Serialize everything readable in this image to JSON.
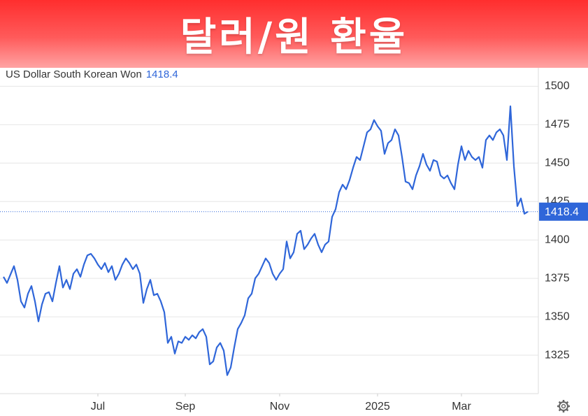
{
  "chart_data": {
    "type": "line",
    "title": "달러/원 환율",
    "series": [
      {
        "name": "US Dollar South Korean Won",
        "color": "#2f66d9",
        "values": [
          1376,
          1372,
          1377.5,
          1383,
          1374,
          1360,
          1356,
          1365,
          1370,
          1360,
          1347,
          1358,
          1365,
          1366,
          1360,
          1372,
          1383,
          1369,
          1374,
          1368,
          1378,
          1381,
          1376,
          1384,
          1390,
          1391,
          1388,
          1384,
          1381,
          1385,
          1379,
          1383,
          1374,
          1378,
          1384,
          1388,
          1385,
          1381,
          1384,
          1378,
          1359,
          1368,
          1374,
          1364,
          1365,
          1360,
          1353,
          1333,
          1337,
          1326,
          1334,
          1333,
          1337,
          1335,
          1338,
          1336,
          1340,
          1342,
          1337,
          1319,
          1321,
          1330,
          1333,
          1328,
          1312,
          1317,
          1330,
          1342,
          1346,
          1351,
          1362,
          1365,
          1375,
          1378,
          1383,
          1388,
          1385,
          1378,
          1374,
          1378,
          1381,
          1399,
          1388,
          1392,
          1404,
          1406,
          1394,
          1397,
          1401,
          1404,
          1397,
          1392,
          1397,
          1399,
          1415,
          1420,
          1431,
          1436,
          1433,
          1439,
          1447,
          1454,
          1452,
          1461,
          1470,
          1472,
          1478,
          1474,
          1471,
          1456,
          1463,
          1465,
          1472,
          1468,
          1454,
          1438,
          1437,
          1433,
          1442,
          1448,
          1456,
          1449,
          1445,
          1452,
          1451,
          1442,
          1440,
          1442,
          1437,
          1433,
          1449,
          1461,
          1452,
          1458,
          1454,
          1452,
          1454,
          1447,
          1465,
          1468,
          1465,
          1470,
          1472,
          1468,
          1452,
          1487,
          1448,
          1422,
          1427,
          1417,
          1418.4
        ]
      }
    ],
    "xlim": [
      -1,
      153
    ],
    "xticks": [
      {
        "value": 27,
        "label": "Jul"
      },
      {
        "value": 52,
        "label": "Sep"
      },
      {
        "value": 79,
        "label": "Nov"
      },
      {
        "value": 107,
        "label": "2025"
      },
      {
        "value": 131,
        "label": "Mar"
      }
    ],
    "ylim": [
      1300,
      1512
    ],
    "yticks": [
      1325,
      1350,
      1375,
      1400,
      1425,
      1450,
      1475,
      1500
    ],
    "grid": true
  }
}
